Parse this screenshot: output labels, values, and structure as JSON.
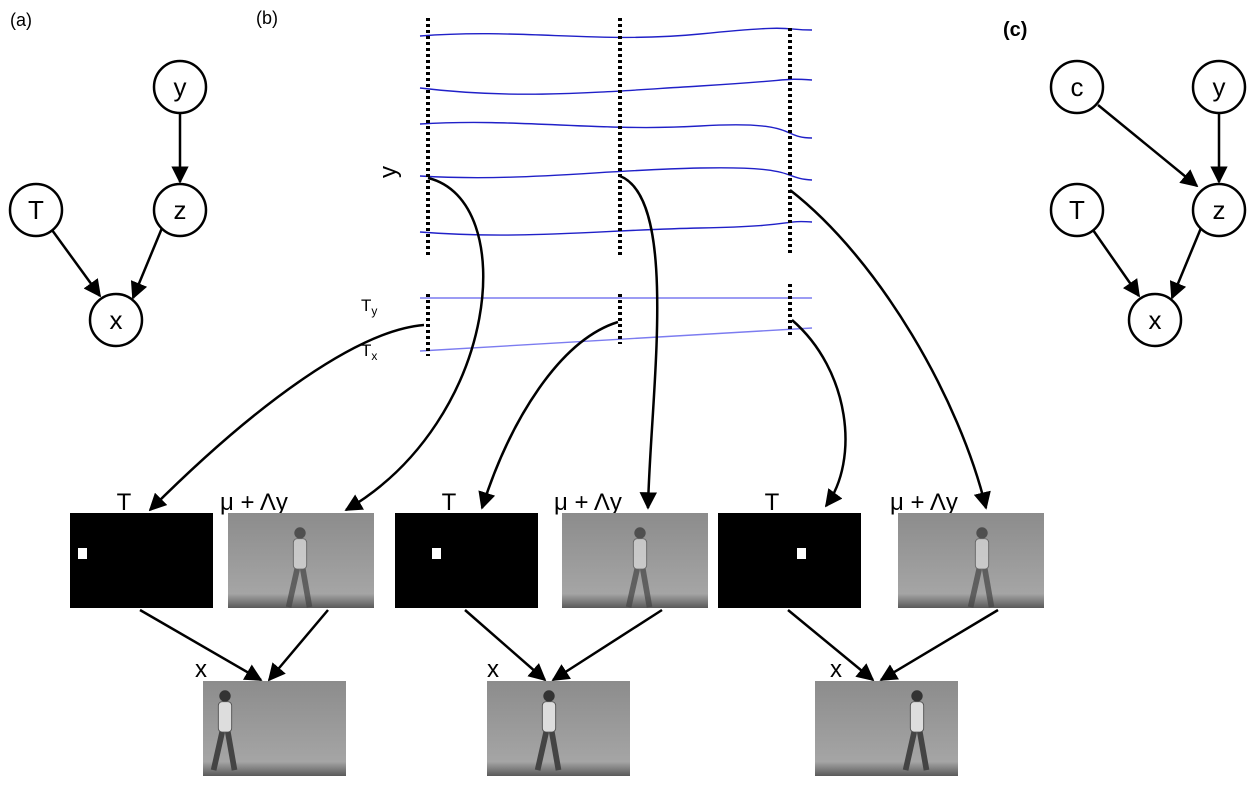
{
  "panel_a": {
    "label": "(a)",
    "nodes": [
      "y",
      "z",
      "T",
      "x"
    ]
  },
  "panel_b": {
    "label": "(b)",
    "latent_axis": "y",
    "transform_y": {
      "base": "T",
      "sub": "y"
    },
    "transform_x": {
      "base": "T",
      "sub": "x"
    },
    "columns": [
      {
        "template": "T",
        "appearance": "μ + Λy",
        "output": "x"
      },
      {
        "template": "T",
        "appearance": "μ + Λy",
        "output": "x"
      },
      {
        "template": "T",
        "appearance": "μ + Λy",
        "output": "x"
      }
    ]
  },
  "panel_c": {
    "label": "(c)",
    "nodes": [
      "c",
      "y",
      "z",
      "T",
      "x"
    ]
  }
}
